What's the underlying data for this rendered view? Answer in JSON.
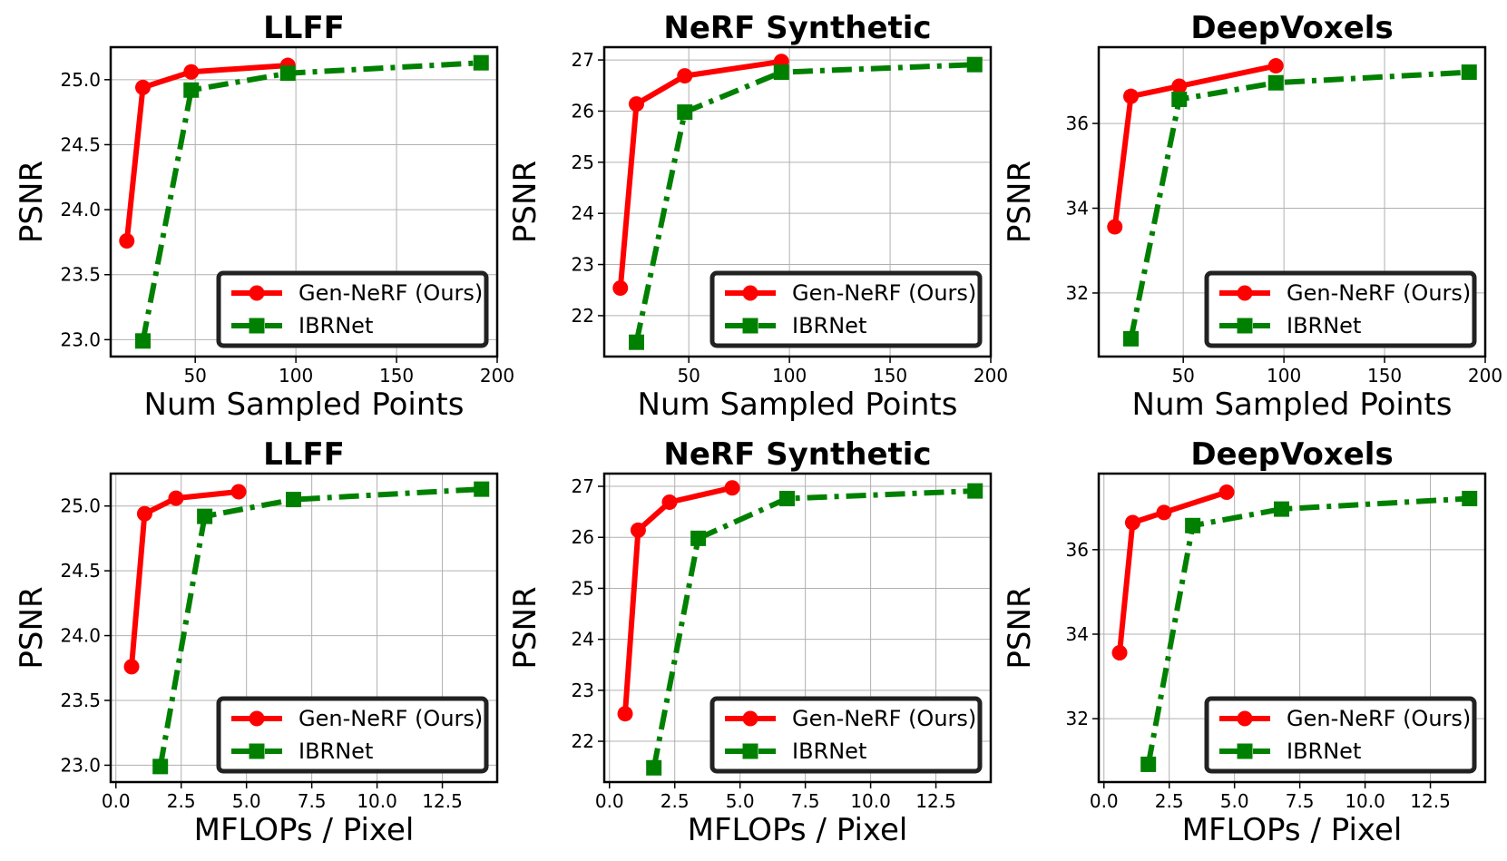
{
  "figure": {
    "series_names": [
      "Gen-NeRF (Ours)",
      "IBRNet"
    ],
    "colors": {
      "gen": "#ff0000",
      "ibr": "#008000",
      "grid": "#b0b0b0",
      "axis": "#000000"
    }
  },
  "chart_data": [
    {
      "type": "line",
      "title": "LLFF",
      "xlabel": "Num Sampled Points",
      "ylabel": "PSNR",
      "xlim": [
        8,
        200
      ],
      "ylim": [
        22.87,
        25.25
      ],
      "xticks": [
        50,
        100,
        150,
        200
      ],
      "yticks": [
        23.0,
        23.5,
        24.0,
        24.5,
        25.0
      ],
      "yticklabels": [
        "23.0",
        "23.5",
        "24.0",
        "24.5",
        "25.0"
      ],
      "legend_loc": "lower-right",
      "series": [
        {
          "name": "Gen-NeRF (Ours)",
          "x": [
            16,
            24,
            48,
            96
          ],
          "y": [
            23.76,
            24.94,
            25.06,
            25.11
          ]
        },
        {
          "name": "IBRNet",
          "x": [
            24,
            48,
            96,
            192
          ],
          "y": [
            22.99,
            24.92,
            25.05,
            25.13
          ]
        }
      ]
    },
    {
      "type": "line",
      "title": "NeRF Synthetic",
      "xlabel": "Num Sampled Points",
      "ylabel": "PSNR",
      "xlim": [
        8,
        200
      ],
      "ylim": [
        21.2,
        27.25
      ],
      "xticks": [
        50,
        100,
        150,
        200
      ],
      "yticks": [
        22,
        23,
        24,
        25,
        26,
        27
      ],
      "yticklabels": [
        "22",
        "23",
        "24",
        "25",
        "26",
        "27"
      ],
      "legend_loc": "lower-right",
      "series": [
        {
          "name": "Gen-NeRF (Ours)",
          "x": [
            16,
            24,
            48,
            96
          ],
          "y": [
            22.54,
            26.14,
            26.69,
            26.97
          ]
        },
        {
          "name": "IBRNet",
          "x": [
            24,
            48,
            96,
            192
          ],
          "y": [
            21.48,
            25.98,
            26.76,
            26.91
          ]
        }
      ]
    },
    {
      "type": "line",
      "title": "DeepVoxels",
      "xlabel": "Num Sampled Points",
      "ylabel": "PSNR",
      "xlim": [
        8,
        200
      ],
      "ylim": [
        30.5,
        37.8
      ],
      "xticks": [
        50,
        100,
        150,
        200
      ],
      "yticks": [
        32,
        34,
        36
      ],
      "yticklabels": [
        "32",
        "34",
        "36"
      ],
      "legend_loc": "lower-right",
      "series": [
        {
          "name": "Gen-NeRF (Ours)",
          "x": [
            16,
            24,
            48,
            96
          ],
          "y": [
            33.56,
            36.64,
            36.88,
            37.36
          ]
        },
        {
          "name": "IBRNet",
          "x": [
            24,
            48,
            96,
            192
          ],
          "y": [
            30.92,
            36.57,
            36.96,
            37.21
          ]
        }
      ]
    },
    {
      "type": "line",
      "title": "LLFF",
      "xlabel": "MFLOPs / Pixel",
      "ylabel": "PSNR",
      "xlim": [
        -0.2,
        14.6
      ],
      "ylim": [
        22.87,
        25.25
      ],
      "xticks": [
        0,
        2.5,
        5,
        7.5,
        10,
        12.5
      ],
      "xticklabels": [
        "0.0",
        "2.5",
        "5.0",
        "7.5",
        "10.0",
        "12.5"
      ],
      "yticks": [
        23.0,
        23.5,
        24.0,
        24.5,
        25.0
      ],
      "yticklabels": [
        "23.0",
        "23.5",
        "24.0",
        "24.5",
        "25.0"
      ],
      "legend_loc": "lower-right",
      "series": [
        {
          "name": "Gen-NeRF (Ours)",
          "x": [
            0.6,
            1.1,
            2.3,
            4.7
          ],
          "y": [
            23.76,
            24.94,
            25.06,
            25.11
          ]
        },
        {
          "name": "IBRNet",
          "x": [
            1.7,
            3.4,
            6.8,
            14.0
          ],
          "y": [
            22.99,
            24.92,
            25.05,
            25.13
          ]
        }
      ]
    },
    {
      "type": "line",
      "title": "NeRF Synthetic",
      "xlabel": "MFLOPs / Pixel",
      "ylabel": "PSNR",
      "xlim": [
        -0.2,
        14.6
      ],
      "ylim": [
        21.2,
        27.25
      ],
      "xticks": [
        0,
        2.5,
        5,
        7.5,
        10,
        12.5
      ],
      "xticklabels": [
        "0.0",
        "2.5",
        "5.0",
        "7.5",
        "10.0",
        "12.5"
      ],
      "yticks": [
        22,
        23,
        24,
        25,
        26,
        27
      ],
      "yticklabels": [
        "22",
        "23",
        "24",
        "25",
        "26",
        "27"
      ],
      "legend_loc": "lower-right",
      "series": [
        {
          "name": "Gen-NeRF (Ours)",
          "x": [
            0.6,
            1.1,
            2.3,
            4.7
          ],
          "y": [
            22.54,
            26.14,
            26.69,
            26.97
          ]
        },
        {
          "name": "IBRNet",
          "x": [
            1.7,
            3.4,
            6.8,
            14.0
          ],
          "y": [
            21.48,
            25.98,
            26.76,
            26.91
          ]
        }
      ]
    },
    {
      "type": "line",
      "title": "DeepVoxels",
      "xlabel": "MFLOPs / Pixel",
      "ylabel": "PSNR",
      "xlim": [
        -0.2,
        14.6
      ],
      "ylim": [
        30.5,
        37.8
      ],
      "xticks": [
        0,
        2.5,
        5,
        7.5,
        10,
        12.5
      ],
      "xticklabels": [
        "0.0",
        "2.5",
        "5.0",
        "7.5",
        "10.0",
        "12.5"
      ],
      "yticks": [
        32,
        34,
        36
      ],
      "yticklabels": [
        "32",
        "34",
        "36"
      ],
      "legend_loc": "lower-right",
      "series": [
        {
          "name": "Gen-NeRF (Ours)",
          "x": [
            0.6,
            1.1,
            2.3,
            4.7
          ],
          "y": [
            33.56,
            36.64,
            36.88,
            37.36
          ]
        },
        {
          "name": "IBRNet",
          "x": [
            1.7,
            3.4,
            6.8,
            14.0
          ],
          "y": [
            30.92,
            36.57,
            36.96,
            37.21
          ]
        }
      ]
    }
  ]
}
